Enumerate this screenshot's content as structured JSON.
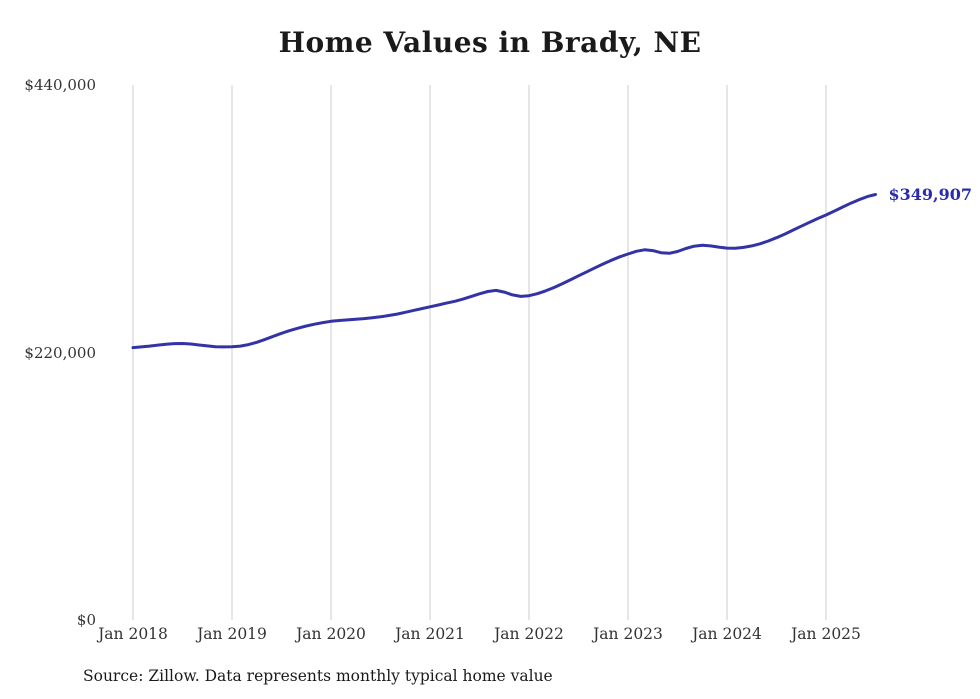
{
  "title": "Home Values in Brady, NE",
  "source_note": "Source: Zillow. Data represents monthly typical home value",
  "colors": {
    "line": "#3333a6",
    "end_label": "#2b2bb0",
    "grid": "#cccccc",
    "text": "#333333",
    "title": "#1a1a1a"
  },
  "chart_data": {
    "type": "line",
    "title": "Home Values in Brady, NE",
    "xlabel": "",
    "ylabel": "",
    "ylim": [
      0,
      440000
    ],
    "grid": "vertical-only",
    "legend": "none",
    "x_tick_labels": [
      "Jan 2018",
      "Jan 2019",
      "Jan 2020",
      "Jan 2021",
      "Jan 2022",
      "Jan 2023",
      "Jan 2024",
      "Jan 2025"
    ],
    "y_tick_labels": [
      "$0",
      "$220,000",
      "$440,000"
    ],
    "end_label": "$349,907",
    "series": [
      {
        "name": "Monthly typical home value",
        "start_month": "2018-01",
        "end_month": "2025-07",
        "final_value": 349907,
        "monthly_values": [
          224000,
          224600,
          225300,
          226100,
          226800,
          227300,
          227400,
          227000,
          226200,
          225400,
          224800,
          224600,
          224800,
          225300,
          226500,
          228400,
          230800,
          233300,
          235800,
          238000,
          240000,
          241800,
          243300,
          244600,
          245700,
          246300,
          246800,
          247300,
          247900,
          248600,
          249400,
          250400,
          251600,
          253100,
          254600,
          256100,
          257600,
          259100,
          260600,
          262100,
          263900,
          266100,
          268300,
          270200,
          271100,
          269700,
          267400,
          266100,
          266700,
          268400,
          270700,
          273400,
          276400,
          279700,
          283100,
          286400,
          289700,
          292900,
          295900,
          298700,
          301000,
          303200,
          304500,
          303800,
          302100,
          301600,
          303100,
          305500,
          307400,
          308200,
          307700,
          306700,
          305900,
          305700,
          306400,
          307700,
          309400,
          311700,
          314400,
          317400,
          320700,
          323900,
          327100,
          330200,
          333100,
          336300,
          339600,
          342800,
          345700,
          348200,
          349907
        ]
      }
    ]
  }
}
